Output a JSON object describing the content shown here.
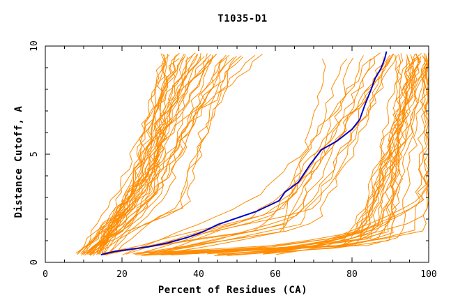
{
  "chart_data": {
    "type": "line",
    "title": "T1035-D1",
    "xlabel": "Percent of Residues (CA)",
    "ylabel": "Distance Cutoff, A",
    "xlim": [
      0,
      100
    ],
    "ylim": [
      0,
      10
    ],
    "x_ticks": [
      0,
      20,
      40,
      60,
      80,
      100
    ],
    "y_ticks": [
      0,
      5,
      10
    ],
    "grid": false,
    "colors": {
      "models": "#ff8c00",
      "highlight": "#0000cc",
      "frame": "#000000"
    },
    "highlight": {
      "points": [
        [
          14.5,
          0.35
        ],
        [
          18,
          0.5
        ],
        [
          22,
          0.6
        ],
        [
          27,
          0.72
        ],
        [
          32,
          0.9
        ],
        [
          37,
          1.15
        ],
        [
          41,
          1.4
        ],
        [
          45,
          1.75
        ],
        [
          50,
          2.05
        ],
        [
          55,
          2.35
        ],
        [
          58,
          2.6
        ],
        [
          61,
          2.85
        ],
        [
          62.5,
          3.25
        ],
        [
          66,
          3.7
        ],
        [
          69,
          4.5
        ],
        [
          72,
          5.2
        ],
        [
          76,
          5.6
        ],
        [
          80,
          6.15
        ],
        [
          82,
          6.6
        ],
        [
          83.5,
          7.35
        ],
        [
          85,
          8.0
        ],
        [
          86,
          8.5
        ],
        [
          87.5,
          8.95
        ],
        [
          88.5,
          9.4
        ],
        [
          89,
          9.75
        ]
      ]
    },
    "series_bundles": [
      {
        "group": "left-low",
        "count": 26,
        "x0": [
          8,
          14
        ],
        "xmid": [
          22,
          30
        ],
        "xtop": [
          30,
          44
        ],
        "y_break": 3.5,
        "shape": "steep"
      },
      {
        "group": "left-high",
        "count": 12,
        "x0": [
          10,
          18
        ],
        "xmid": [
          26,
          38
        ],
        "xtop": [
          40,
          58
        ],
        "y_break": 4.0,
        "shape": "steep"
      },
      {
        "group": "middle",
        "count": 14,
        "x0": [
          14,
          30
        ],
        "xmid": [
          50,
          70
        ],
        "xtop": [
          70,
          92
        ],
        "y_break": 2.0,
        "shape": "mid"
      },
      {
        "group": "right",
        "count": 22,
        "x0": [
          16,
          60
        ],
        "xmid": [
          78,
          92
        ],
        "xtop": [
          92,
          100
        ],
        "y_break": 1.2,
        "shape": "late"
      },
      {
        "group": "edge",
        "count": 6,
        "x0": [
          40,
          58
        ],
        "xmid": [
          95,
          100
        ],
        "xtop": [
          98,
          100
        ],
        "y_break": 2.5,
        "shape": "late"
      }
    ]
  }
}
